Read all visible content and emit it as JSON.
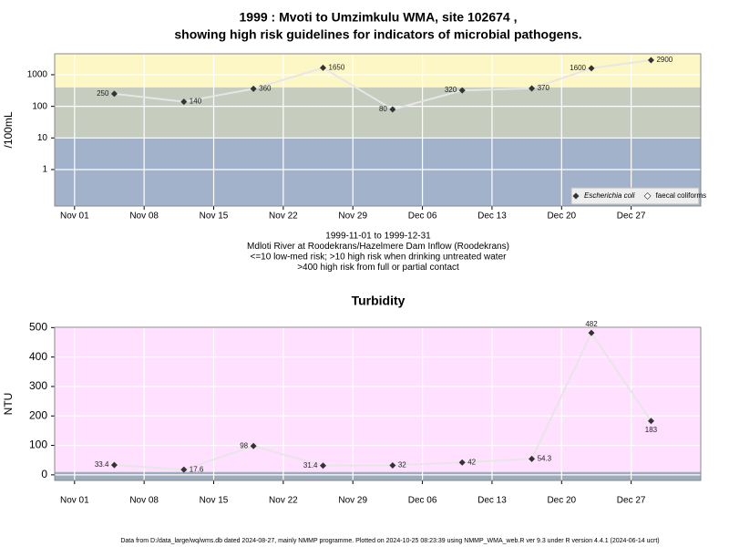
{
  "chart_data": [
    {
      "type": "line",
      "title": "1999 : Mvoti to Umzimkulu WMA, site 102674 ,",
      "subtitle": "showing high risk guidelines for indicators of microbial pathogens.",
      "notes": [
        "1999-11-01 to 1999-12-31",
        "Mdloti River at Roodekrans/Hazelmere Dam Inflow (Roodekrans)",
        "<=10 low-med risk; >10 high risk when drinking untreated water",
        ">400 high risk from full or partial contact"
      ],
      "y_label": "/100mL",
      "log_y": true,
      "x": [
        "1999-11-05",
        "1999-11-12",
        "1999-11-19",
        "1999-11-26",
        "1999-12-03",
        "1999-12-10",
        "1999-12-17",
        "1999-12-23",
        "1999-12-29"
      ],
      "series": [
        {
          "name": "Escherichia coli",
          "color": "#333333",
          "values": [
            250,
            140,
            360,
            1650,
            80,
            320,
            370,
            1600,
            2900
          ]
        },
        {
          "name": "faecal coliforms",
          "color": "#ffffff",
          "values": [
            null,
            null,
            null,
            null,
            null,
            null,
            null,
            null,
            null
          ]
        }
      ],
      "xlim": [
        "1999-10-30",
        "2000-01-03"
      ],
      "xticks": [
        {
          "value": "1999-11-01",
          "label": "Nov 01"
        },
        {
          "value": "1999-11-08",
          "label": "Nov 08"
        },
        {
          "value": "1999-11-15",
          "label": "Nov 15"
        },
        {
          "value": "1999-11-22",
          "label": "Nov 22"
        },
        {
          "value": "1999-11-29",
          "label": "Nov 29"
        },
        {
          "value": "1999-12-06",
          "label": "Dec 06"
        },
        {
          "value": "1999-12-13",
          "label": "Dec 13"
        },
        {
          "value": "1999-12-20",
          "label": "Dec 20"
        },
        {
          "value": "1999-12-27",
          "label": "Dec 27"
        }
      ],
      "ylim": [
        0.07,
        4600
      ],
      "yticks": [
        1,
        10,
        100,
        1000
      ],
      "bands": [
        {
          "max": 10,
          "color": "#a2b2cb"
        },
        {
          "min": 10,
          "max": 400,
          "color": "#c6ccbe"
        },
        {
          "min": 400,
          "color": "#fdf7c6"
        }
      ],
      "grid": true,
      "legend": "bottom-right"
    },
    {
      "type": "line",
      "title": "Turbidity",
      "y_label": "NTU",
      "x": [
        "1999-11-05",
        "1999-11-12",
        "1999-11-19",
        "1999-11-26",
        "1999-12-03",
        "1999-12-10",
        "1999-12-17",
        "1999-12-23",
        "1999-12-29"
      ],
      "series": [
        {
          "name": "Turbidity",
          "color": "#333333",
          "values": [
            33.4,
            17.6,
            98,
            31.4,
            32,
            42,
            54.3,
            482,
            183
          ]
        }
      ],
      "xlim": [
        "1999-10-30",
        "2000-01-03"
      ],
      "xticks": [
        {
          "value": "1999-11-01",
          "label": "Nov 01"
        },
        {
          "value": "1999-11-08",
          "label": "Nov 08"
        },
        {
          "value": "1999-11-15",
          "label": "Nov 15"
        },
        {
          "value": "1999-11-22",
          "label": "Nov 22"
        },
        {
          "value": "1999-11-29",
          "label": "Nov 29"
        },
        {
          "value": "1999-12-06",
          "label": "Dec 06"
        },
        {
          "value": "1999-12-13",
          "label": "Dec 13"
        },
        {
          "value": "1999-12-20",
          "label": "Dec 20"
        },
        {
          "value": "1999-12-27",
          "label": "Dec 27"
        }
      ],
      "ylim": [
        -19,
        501
      ],
      "yticks": [
        0,
        100,
        200,
        300,
        400,
        500
      ],
      "bands": [
        {
          "max": 10,
          "color": "#9dabbd"
        },
        {
          "min": 10,
          "color": "#ffe0ff"
        }
      ],
      "grid": true
    }
  ],
  "footer": "Data from D:/data_large/wq/wms.db dated 2024-08-27, mainly NMMP programme. Plotted on 2024-10-25 08:23:39 using NMMP_WMA_web.R ver 9.3 under R version 4.4.1 (2024-06-14 ucrt)"
}
